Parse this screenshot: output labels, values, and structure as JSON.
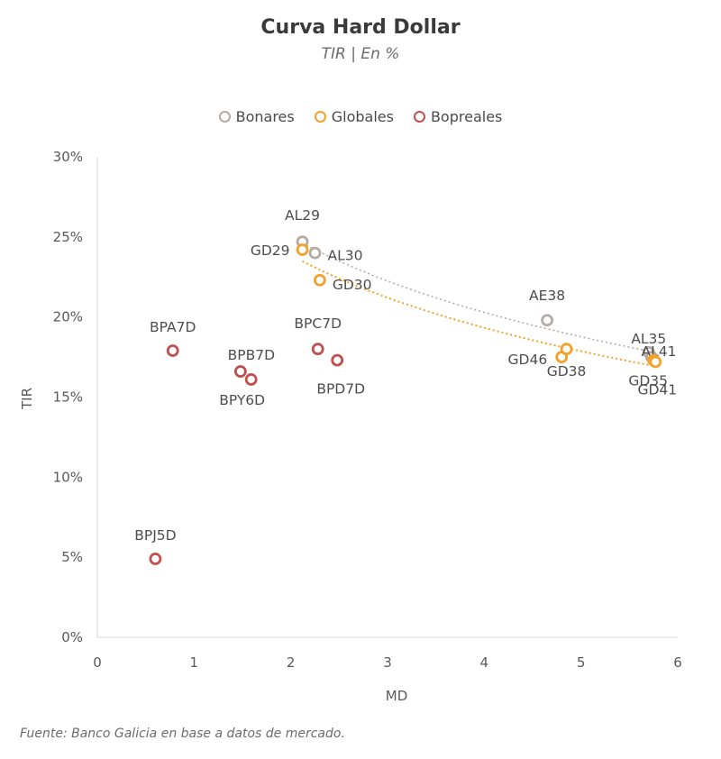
{
  "chart_data": {
    "type": "scatter",
    "title": "Curva Hard Dollar",
    "subtitle": "TIR | En %",
    "xlabel": "MD",
    "ylabel": "TIR",
    "xlim": [
      0,
      6
    ],
    "ylim": [
      0,
      30
    ],
    "x_ticks": [
      "0",
      "1",
      "2",
      "3",
      "4",
      "5",
      "6"
    ],
    "y_ticks": [
      "0%",
      "5%",
      "10%",
      "15%",
      "20%",
      "25%",
      "30%"
    ],
    "legend_position": "top",
    "source": "Fuente: Banco Galicia en base a datos de mercado.",
    "series": [
      {
        "name": "Bonares",
        "color": "#b5aba6",
        "points": [
          {
            "label": "AL29",
            "x": 2.12,
            "y": 24.7
          },
          {
            "label": "AL30",
            "x": 2.25,
            "y": 24.0
          },
          {
            "label": "AE38",
            "x": 4.65,
            "y": 19.8
          },
          {
            "label": "AL35",
            "x": 5.7,
            "y": 17.8
          },
          {
            "label": "AL41",
            "x": 5.73,
            "y": 17.5
          }
        ],
        "trendline": true
      },
      {
        "name": "Globales",
        "color": "#f5a028",
        "points": [
          {
            "label": "GD29",
            "x": 2.12,
            "y": 24.2
          },
          {
            "label": "GD30",
            "x": 2.3,
            "y": 22.3
          },
          {
            "label": "GD46",
            "x": 4.8,
            "y": 17.5
          },
          {
            "label": "GD38",
            "x": 4.85,
            "y": 18.0
          },
          {
            "label": "GD35",
            "x": 5.75,
            "y": 17.3
          },
          {
            "label": "GD41",
            "x": 5.77,
            "y": 17.2
          }
        ],
        "trendline": true
      },
      {
        "name": "Bopreales",
        "color": "#c0504d",
        "points": [
          {
            "label": "BPA7D",
            "x": 0.78,
            "y": 17.9
          },
          {
            "label": "BPB7D",
            "x": 1.48,
            "y": 16.6
          },
          {
            "label": "BPY6D",
            "x": 1.59,
            "y": 16.1
          },
          {
            "label": "BPC7D",
            "x": 2.28,
            "y": 18.0
          },
          {
            "label": "BPD7D",
            "x": 2.48,
            "y": 17.3
          },
          {
            "label": "BPJ5D",
            "x": 0.6,
            "y": 4.9
          }
        ],
        "trendline": false
      }
    ]
  }
}
